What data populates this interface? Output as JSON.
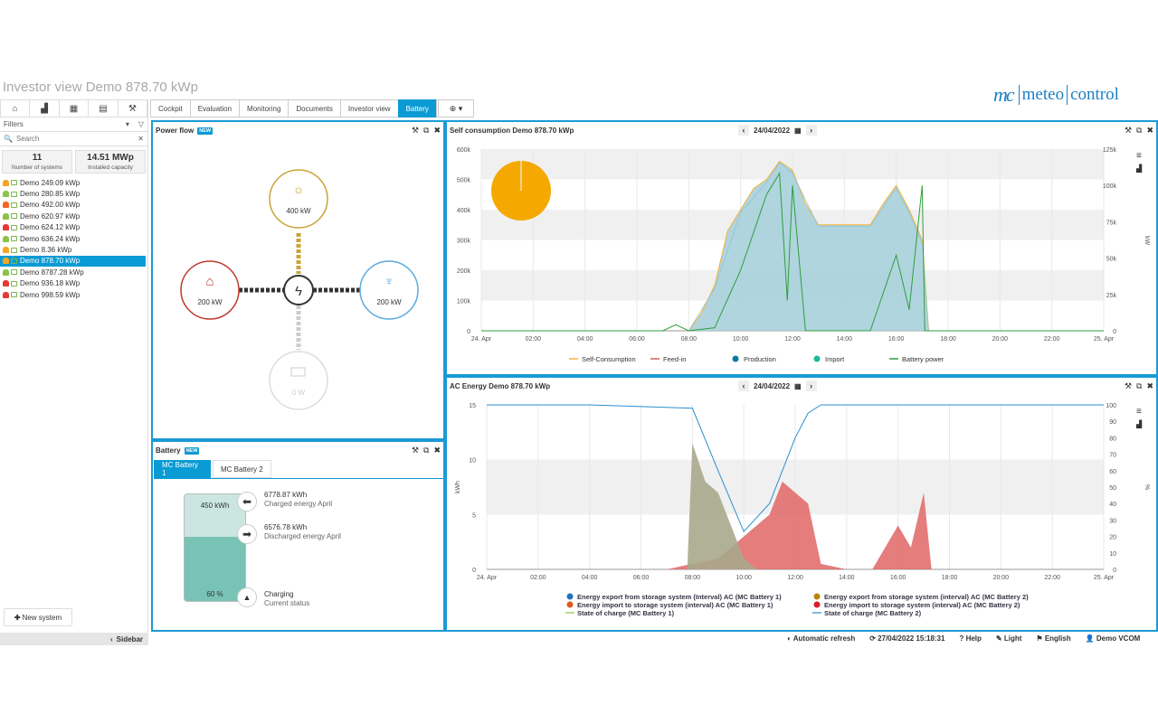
{
  "page": {
    "title": "Investor view Demo 878.70 kWp"
  },
  "logo": {
    "mark": "mc",
    "w1": "meteo",
    "w2": "control"
  },
  "sidebar": {
    "tools": [
      "home-icon",
      "bar-chart-icon",
      "table-icon",
      "document-icon",
      "wrench-icon"
    ],
    "filters_label": "Filters",
    "search_placeholder": "Search",
    "stats": [
      {
        "value": "11",
        "label": "Number of systems"
      },
      {
        "value": "14.51 MWp",
        "label": "Installed capacity"
      }
    ],
    "systems": [
      {
        "name": "Demo 249.09 kWp",
        "bell": "#f5a623",
        "selected": false
      },
      {
        "name": "Demo 280.85 kWp",
        "bell": "#8bc34a",
        "selected": false
      },
      {
        "name": "Demo 492.00 kWp",
        "bell": "#f26522",
        "selected": false
      },
      {
        "name": "Demo 620.97 kWp",
        "bell": "#8bc34a",
        "selected": false
      },
      {
        "name": "Demo 624.12 kWp",
        "bell": "#e53935",
        "selected": false
      },
      {
        "name": "Demo 636.24 kWp",
        "bell": "#8bc34a",
        "selected": false
      },
      {
        "name": "Demo 8.36 kWp",
        "bell": "#f5a623",
        "selected": false
      },
      {
        "name": "Demo 878.70 kWp",
        "bell": "#f5a623",
        "selected": true
      },
      {
        "name": "Demo 8787.28 kWp",
        "bell": "#8bc34a",
        "selected": false
      },
      {
        "name": "Demo 936.18 kWp",
        "bell": "#e53935",
        "selected": false
      },
      {
        "name": "Demo 998.59 kWp",
        "bell": "#e53935",
        "selected": false
      }
    ],
    "new_system": "New system",
    "collapse": "Sidebar"
  },
  "tabs": [
    {
      "label": "Cockpit",
      "active": false
    },
    {
      "label": "Evaluation",
      "active": false
    },
    {
      "label": "Monitoring",
      "active": false
    },
    {
      "label": "Documents",
      "active": false
    },
    {
      "label": "Investor view",
      "active": false
    },
    {
      "label": "Battery",
      "active": true
    }
  ],
  "power_flow": {
    "title": "Power flow",
    "badge": "NEW",
    "solar": "400 kW",
    "home": "200 kW",
    "grid": "200 kW",
    "battery": "0 W"
  },
  "battery": {
    "title": "Battery",
    "badge": "NEW",
    "tabs": [
      "MC Battery 1",
      "MC Battery 2"
    ],
    "capacity": "450 kWh",
    "soc": "60 %",
    "soc_fraction": 0.6,
    "charged_value": "6778.87 kWh",
    "charged_label": "Charged energy April",
    "discharged_value": "6576.78 kWh",
    "discharged_label": "Discharged energy April",
    "status_value": "Charging",
    "status_label": "Current status"
  },
  "self_consumption": {
    "title": "Self consumption Demo 878.70 kWp",
    "date": "24/04/2022",
    "legend": [
      "Self-Consumption",
      "Feed-in",
      "Production",
      "Import",
      "Battery power"
    ],
    "right_unit": "kW"
  },
  "ac_energy": {
    "title": "AC Energy Demo 878.70 kWp",
    "date": "24/04/2022",
    "legend": [
      "Energy export from storage system (Interval) AC (MC Battery 1)",
      "Energy export from storage system (interval) AC (MC Battery 2)",
      "Energy import to storage system (interval) AC (MC Battery 1)",
      "Energy import to storage system (interval) AC (MC Battery 2)",
      "State of charge (MC Battery 1)",
      "State of charge (MC Battery 2)"
    ],
    "left_unit": "kWh",
    "right_unit": "%"
  },
  "chart_data": [
    {
      "type": "area",
      "title": "Self consumption Demo 878.70 kWp",
      "x": [
        "24. Apr",
        "02:00",
        "04:00",
        "06:00",
        "08:00",
        "10:00",
        "12:00",
        "14:00",
        "16:00",
        "18:00",
        "20:00",
        "22:00",
        "25. Apr"
      ],
      "ylim": [
        0,
        600000
      ],
      "y_ticks": [
        "0",
        "100k",
        "200k",
        "300k",
        "400k",
        "500k",
        "600k"
      ],
      "y2lim": [
        0,
        125000
      ],
      "y2_ticks": [
        "0",
        "25k",
        "50k",
        "75k",
        "100k",
        "125k"
      ],
      "series": [
        {
          "name": "Self-Consumption",
          "color": "#f5b335",
          "x": [
            8,
            8.5,
            9,
            9.5,
            10,
            10.5,
            11,
            11.5,
            12,
            12.5,
            13,
            14,
            15,
            15.5,
            16,
            16.5,
            17,
            17.25
          ],
          "values": [
            0,
            60000,
            150000,
            330000,
            400000,
            470000,
            500000,
            560000,
            530000,
            420000,
            350000,
            350000,
            350000,
            420000,
            480000,
            400000,
            300000,
            0
          ]
        },
        {
          "name": "Production",
          "color": "#0e7aa0",
          "x": [
            8,
            9,
            10,
            11,
            11.5,
            12,
            13,
            14,
            15,
            16,
            16.5,
            17,
            17.25
          ],
          "values": [
            0,
            140000,
            390000,
            490000,
            555000,
            520000,
            345000,
            345000,
            345000,
            470000,
            390000,
            290000,
            0
          ]
        },
        {
          "name": "Battery power",
          "color": "#2e9e3a",
          "x": [
            6,
            7,
            7.5,
            8,
            9,
            10,
            11,
            11.5,
            11.8,
            12,
            12.5,
            13,
            15,
            16,
            16.5,
            17,
            17.1
          ],
          "values": [
            0,
            0,
            20000,
            0,
            10000,
            200000,
            450000,
            520000,
            100000,
            480000,
            0,
            0,
            0,
            250000,
            70000,
            480000,
            0
          ]
        }
      ]
    },
    {
      "type": "area",
      "title": "AC Energy Demo 878.70 kWp",
      "x": [
        "24. Apr",
        "02:00",
        "04:00",
        "06:00",
        "08:00",
        "10:00",
        "12:00",
        "14:00",
        "16:00",
        "18:00",
        "20:00",
        "22:00",
        "25. Apr"
      ],
      "ylim": [
        0,
        15
      ],
      "y_ticks": [
        "0",
        "5",
        "10",
        "15"
      ],
      "y2lim": [
        0,
        100
      ],
      "y2_ticks": [
        "0",
        "10",
        "20",
        "30",
        "40",
        "50",
        "60",
        "70",
        "80",
        "90",
        "100"
      ],
      "series": [
        {
          "name": "Energy export from storage system (Interval) AC (MC Battery 1)",
          "color": "#a9a98c",
          "x": [
            7.8,
            8,
            8.5,
            9,
            9.5,
            10,
            10.5
          ],
          "values": [
            0,
            11.5,
            8,
            7,
            4,
            1,
            0
          ]
        },
        {
          "name": "Energy import to storage system (interval) AC (MC Battery 1)",
          "color": "#e06666",
          "x": [
            7,
            8,
            9,
            10,
            11,
            11.5,
            12,
            12.5,
            13,
            14,
            15,
            16,
            16.5,
            17,
            17.3
          ],
          "values": [
            0,
            0.5,
            1,
            3,
            5,
            8,
            7,
            6,
            0.5,
            0,
            0,
            4,
            2,
            7,
            0
          ]
        },
        {
          "name": "State of charge (MC Battery 2)",
          "color": "#2b8fcf",
          "x": [
            0,
            4,
            8,
            9,
            10,
            11,
            12,
            12.5,
            13,
            14,
            16,
            18,
            20,
            22,
            24
          ],
          "values": [
            100,
            100,
            98,
            60,
            23,
            40,
            80,
            95,
            100,
            100,
            100,
            100,
            100,
            100,
            100
          ]
        }
      ]
    }
  ],
  "footer": {
    "auto_refresh": "Automatic refresh",
    "timestamp": "27/04/2022 15:18:31",
    "help": "Help",
    "theme": "Light",
    "language": "English",
    "user": "Demo VCOM"
  }
}
